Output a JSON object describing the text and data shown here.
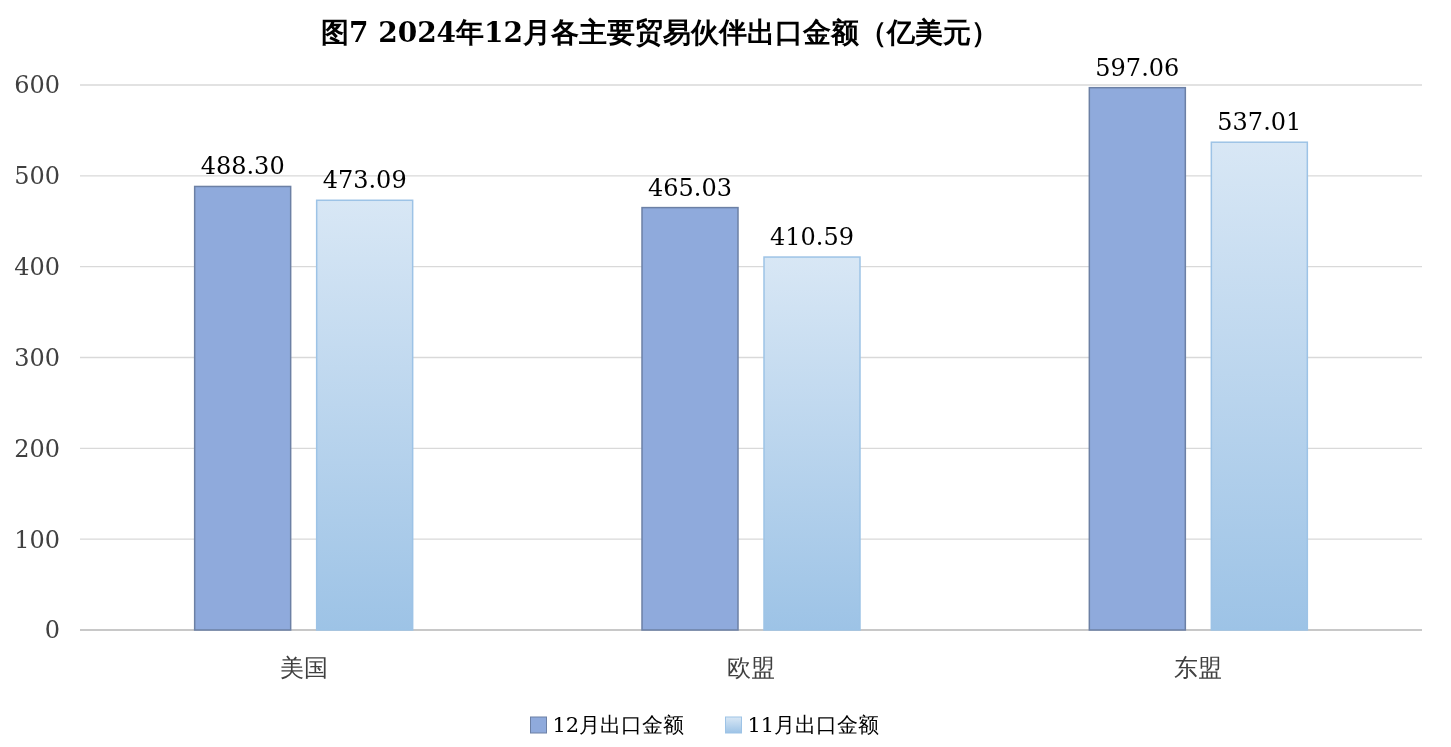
{
  "chart_data": {
    "type": "bar",
    "title": "图7 2024年12月各主要贸易伙伴出口金额（亿美元）",
    "categories": [
      "美国",
      "欧盟",
      "东盟"
    ],
    "series": [
      {
        "name": "12月出口金额",
        "color": "#8faadc",
        "values": [
          488.3,
          465.03,
          597.06
        ],
        "value_labels": [
          "488.30",
          "465.03",
          "597.06"
        ]
      },
      {
        "name": "11月出口金额",
        "color": "#9dc3e6",
        "values": [
          473.09,
          410.59,
          537.01
        ],
        "value_labels": [
          "473.09",
          "410.59",
          "537.01"
        ]
      }
    ],
    "ylim": [
      0,
      600
    ],
    "yticks": [
      0,
      100,
      200,
      300,
      400,
      500,
      600
    ],
    "grid": "y",
    "legend": "bottom"
  }
}
